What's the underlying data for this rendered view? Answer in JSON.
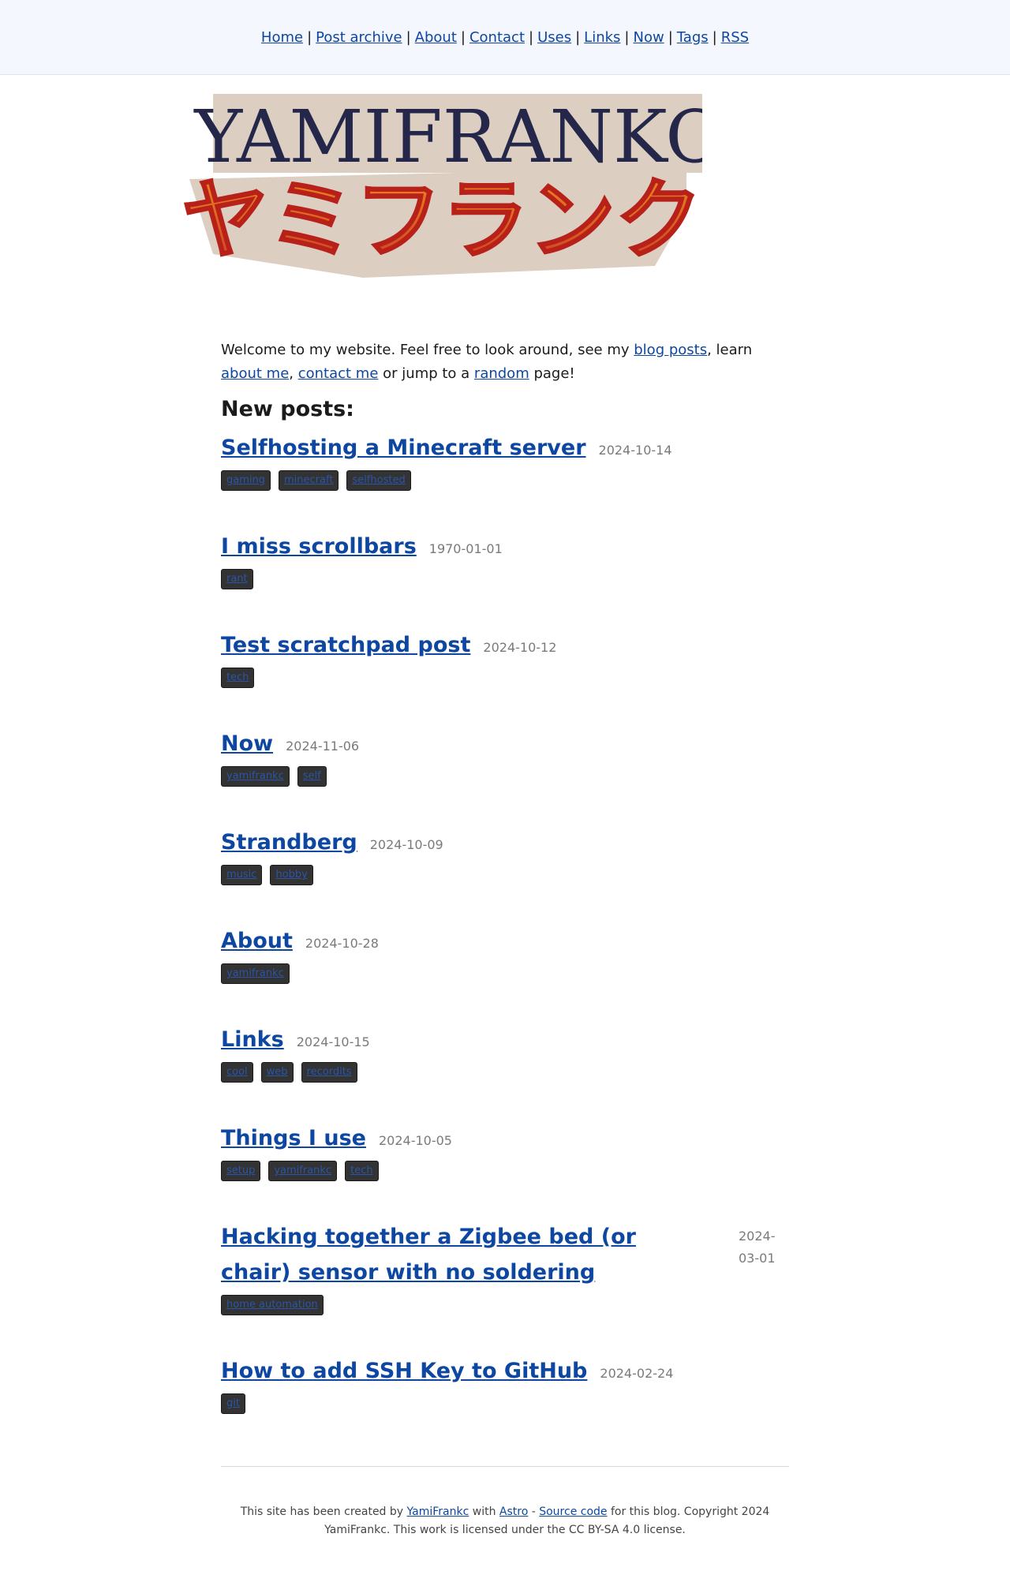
{
  "nav": [
    {
      "label": "Home"
    },
    {
      "label": "Post archive"
    },
    {
      "label": "About"
    },
    {
      "label": "Contact"
    },
    {
      "label": "Uses"
    },
    {
      "label": "Links"
    },
    {
      "label": "Now"
    },
    {
      "label": "Tags"
    },
    {
      "label": "RSS"
    }
  ],
  "logo": {
    "title": "YAMIFRANKC",
    "subtitle": "ヤミフランク"
  },
  "intro": {
    "t1": "Welcome to my website. Feel free to look around, see my ",
    "l1": "blog posts",
    "t2": ", learn ",
    "l2": "about me",
    "t3": ", ",
    "l3": "contact me",
    "t4": " or jump to a ",
    "l4": "random",
    "t5": " page!"
  },
  "new_posts_heading": "New posts:",
  "posts": [
    {
      "title": "Selfhosting a Minecraft server",
      "date": "2024-10-14",
      "tags": [
        "gaming",
        "minecraft",
        "selfhosted"
      ]
    },
    {
      "title": "I miss scrollbars",
      "date": "1970-01-01",
      "tags": [
        "rant"
      ]
    },
    {
      "title": "Test scratchpad post",
      "date": "2024-10-12",
      "tags": [
        "tech"
      ]
    },
    {
      "title": "Now",
      "date": "2024-11-06",
      "tags": [
        "yamifrankc",
        "self"
      ]
    },
    {
      "title": "Strandberg",
      "date": "2024-10-09",
      "tags": [
        "music",
        "hobby"
      ]
    },
    {
      "title": "About",
      "date": "2024-10-28",
      "tags": [
        "yamifrankc"
      ]
    },
    {
      "title": "Links",
      "date": "2024-10-15",
      "tags": [
        "cool",
        "web",
        "recordits"
      ]
    },
    {
      "title": "Things I use",
      "date": "2024-10-05",
      "tags": [
        "setup",
        "yamifrankc",
        "tech"
      ]
    },
    {
      "title": "Hacking together a Zigbee bed (or chair) sensor with no soldering",
      "date": "2024-03-01",
      "tags": [
        "home automation"
      ]
    },
    {
      "title": "How to add SSH Key to GitHub",
      "date": "2024-02-24",
      "tags": [
        "git"
      ]
    }
  ],
  "footer": {
    "t1": "This site has been created by ",
    "l1": "YamiFrankc",
    "t2": " with ",
    "l2": "Astro",
    "t3": " - ",
    "l3": "Source code",
    "t4": " for this blog. Copyright 2024 YamiFrankc. This work is licensed under the CC BY-SA 4.0 license."
  }
}
